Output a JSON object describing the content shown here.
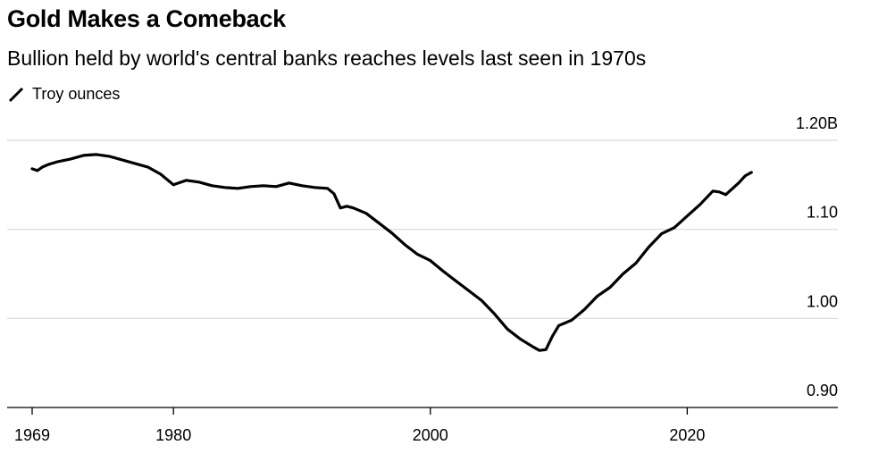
{
  "header": {
    "title": "Gold Makes a Comeback",
    "subtitle": "Bullion held by world's central banks reaches levels last seen in 1970s"
  },
  "legend": {
    "label": "Troy ounces",
    "icon": "line-swatch-icon"
  },
  "chart_data": {
    "type": "line",
    "title": "Gold Makes a Comeback",
    "subtitle": "Bullion held by world's central banks reaches levels last seen in 1970s",
    "xlabel": "",
    "ylabel": "Troy ounces",
    "xlim": [
      1969,
      2030
    ],
    "ylim": [
      0.9,
      1.2
    ],
    "y_ticks": [
      {
        "value": 1.2,
        "label": "1.20B"
      },
      {
        "value": 1.1,
        "label": "1.10"
      },
      {
        "value": 1.0,
        "label": "1.00"
      },
      {
        "value": 0.9,
        "label": "0.90"
      }
    ],
    "x_ticks": [
      {
        "value": 1969,
        "label": "1969"
      },
      {
        "value": 1980,
        "label": "1980"
      },
      {
        "value": 2000,
        "label": "2000"
      },
      {
        "value": 2020,
        "label": "2020"
      }
    ],
    "grid": true,
    "line_color": "#000000",
    "grid_color": "#d9d9d9",
    "series": [
      {
        "name": "Troy ounces",
        "x": [
          1969,
          1969.4,
          1969.8,
          1970.3,
          1971,
          1972,
          1973,
          1974,
          1975,
          1976,
          1977,
          1978,
          1979,
          1980,
          1981,
          1982,
          1983,
          1984,
          1985,
          1986,
          1987,
          1988,
          1989,
          1990,
          1991,
          1992,
          1992.5,
          1993,
          1993.5,
          1994,
          1995,
          1996,
          1997,
          1998,
          1999,
          2000,
          2001,
          2002,
          2003,
          2004,
          2005,
          2006,
          2007,
          2008,
          2008.5,
          2009,
          2009.5,
          2010,
          2011,
          2012,
          2013,
          2014,
          2015,
          2016,
          2017,
          2018,
          2019,
          2020,
          2021,
          2022,
          2022.5,
          2023,
          2024,
          2024.5,
          2025
        ],
        "values": [
          1.168,
          1.166,
          1.17,
          1.173,
          1.176,
          1.179,
          1.183,
          1.184,
          1.182,
          1.178,
          1.174,
          1.17,
          1.162,
          1.15,
          1.155,
          1.153,
          1.149,
          1.147,
          1.146,
          1.148,
          1.149,
          1.148,
          1.152,
          1.149,
          1.147,
          1.146,
          1.14,
          1.124,
          1.126,
          1.124,
          1.118,
          1.107,
          1.096,
          1.083,
          1.072,
          1.065,
          1.053,
          1.042,
          1.031,
          1.02,
          1.005,
          0.988,
          0.977,
          0.968,
          0.964,
          0.965,
          0.98,
          0.992,
          0.998,
          1.01,
          1.025,
          1.035,
          1.05,
          1.062,
          1.08,
          1.095,
          1.102,
          1.115,
          1.128,
          1.143,
          1.142,
          1.139,
          1.152,
          1.16,
          1.164
        ]
      }
    ]
  }
}
